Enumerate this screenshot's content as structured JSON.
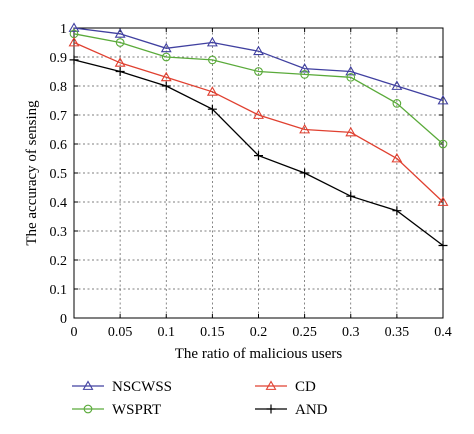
{
  "chart_data": {
    "type": "line",
    "xlabel": "The ratio of malicious users",
    "ylabel": "The accuracy of sensing",
    "xlim": [
      0,
      0.4
    ],
    "ylim": [
      0,
      1
    ],
    "x": [
      0,
      0.05,
      0.1,
      0.15,
      0.2,
      0.25,
      0.3,
      0.35,
      0.4
    ],
    "x_tick_labels": [
      "0",
      "0.05",
      "0.1",
      "0.15",
      "0.2",
      "0.25",
      "0.3",
      "0.35",
      "0.4"
    ],
    "y_ticks": [
      0,
      0.1,
      0.2,
      0.3,
      0.4,
      0.5,
      0.6,
      0.7,
      0.8,
      0.9,
      1
    ],
    "y_tick_labels": [
      "0",
      "0.1",
      "0.2",
      "0.3",
      "0.4",
      "0.5",
      "0.6",
      "0.7",
      "0.8",
      "0.9",
      "1"
    ],
    "grid": true,
    "legend_position": "bottom",
    "series": [
      {
        "name": "NSCWSS",
        "color": "#4040a0",
        "marker": "triangle",
        "values": [
          1.0,
          0.98,
          0.93,
          0.95,
          0.92,
          0.86,
          0.85,
          0.8,
          0.75
        ]
      },
      {
        "name": "WSPRT",
        "color": "#5aaa3a",
        "marker": "circle",
        "values": [
          0.98,
          0.95,
          0.9,
          0.89,
          0.85,
          0.84,
          0.83,
          0.74,
          0.6
        ]
      },
      {
        "name": "CD",
        "color": "#e04030",
        "marker": "triangle",
        "values": [
          0.95,
          0.88,
          0.83,
          0.78,
          0.7,
          0.65,
          0.64,
          0.55,
          0.4
        ]
      },
      {
        "name": "AND",
        "color": "#000000",
        "marker": "plus",
        "values": [
          0.89,
          0.85,
          0.8,
          0.72,
          0.56,
          0.5,
          0.42,
          0.37,
          0.25
        ]
      }
    ]
  }
}
